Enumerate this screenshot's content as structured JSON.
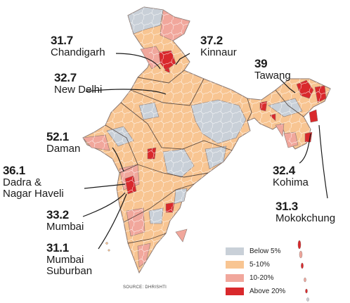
{
  "colors": {
    "below5": "#c9d0d8",
    "5to10": "#f8c592",
    "10to20": "#f1a79c",
    "above20": "#d9292c",
    "border": "#7a6a66"
  },
  "callouts": [
    {
      "id": "chandigarh",
      "value": "31.7",
      "name": "Chandigarh"
    },
    {
      "id": "kinnaur",
      "value": "37.2",
      "name": "Kinnaur"
    },
    {
      "id": "new-delhi",
      "value": "32.7",
      "name": "New Delhi"
    },
    {
      "id": "tawang",
      "value": "39",
      "name": "Tawang"
    },
    {
      "id": "daman",
      "value": "52.1",
      "name": "Daman"
    },
    {
      "id": "dadra",
      "value": "36.1",
      "name1": "Dadra &",
      "name2": "Nagar Haveli"
    },
    {
      "id": "kohima",
      "value": "32.4",
      "name": "Kohima"
    },
    {
      "id": "mokokchung",
      "value": "31.3",
      "name": "Mokokchung"
    },
    {
      "id": "mumbai",
      "value": "33.2",
      "name": "Mumbai"
    },
    {
      "id": "mumbai-suburban",
      "value": "31.1",
      "name1": "Mumbai",
      "name2": "Suburban"
    }
  ],
  "legend": [
    {
      "key": "below5",
      "label": "Below 5%"
    },
    {
      "key": "5to10",
      "label": "5-10%"
    },
    {
      "key": "10to20",
      "label": "10-20%"
    },
    {
      "key": "above20",
      "label": "Above 20%"
    }
  ],
  "source": "SOURCE: DHRISHTI"
}
